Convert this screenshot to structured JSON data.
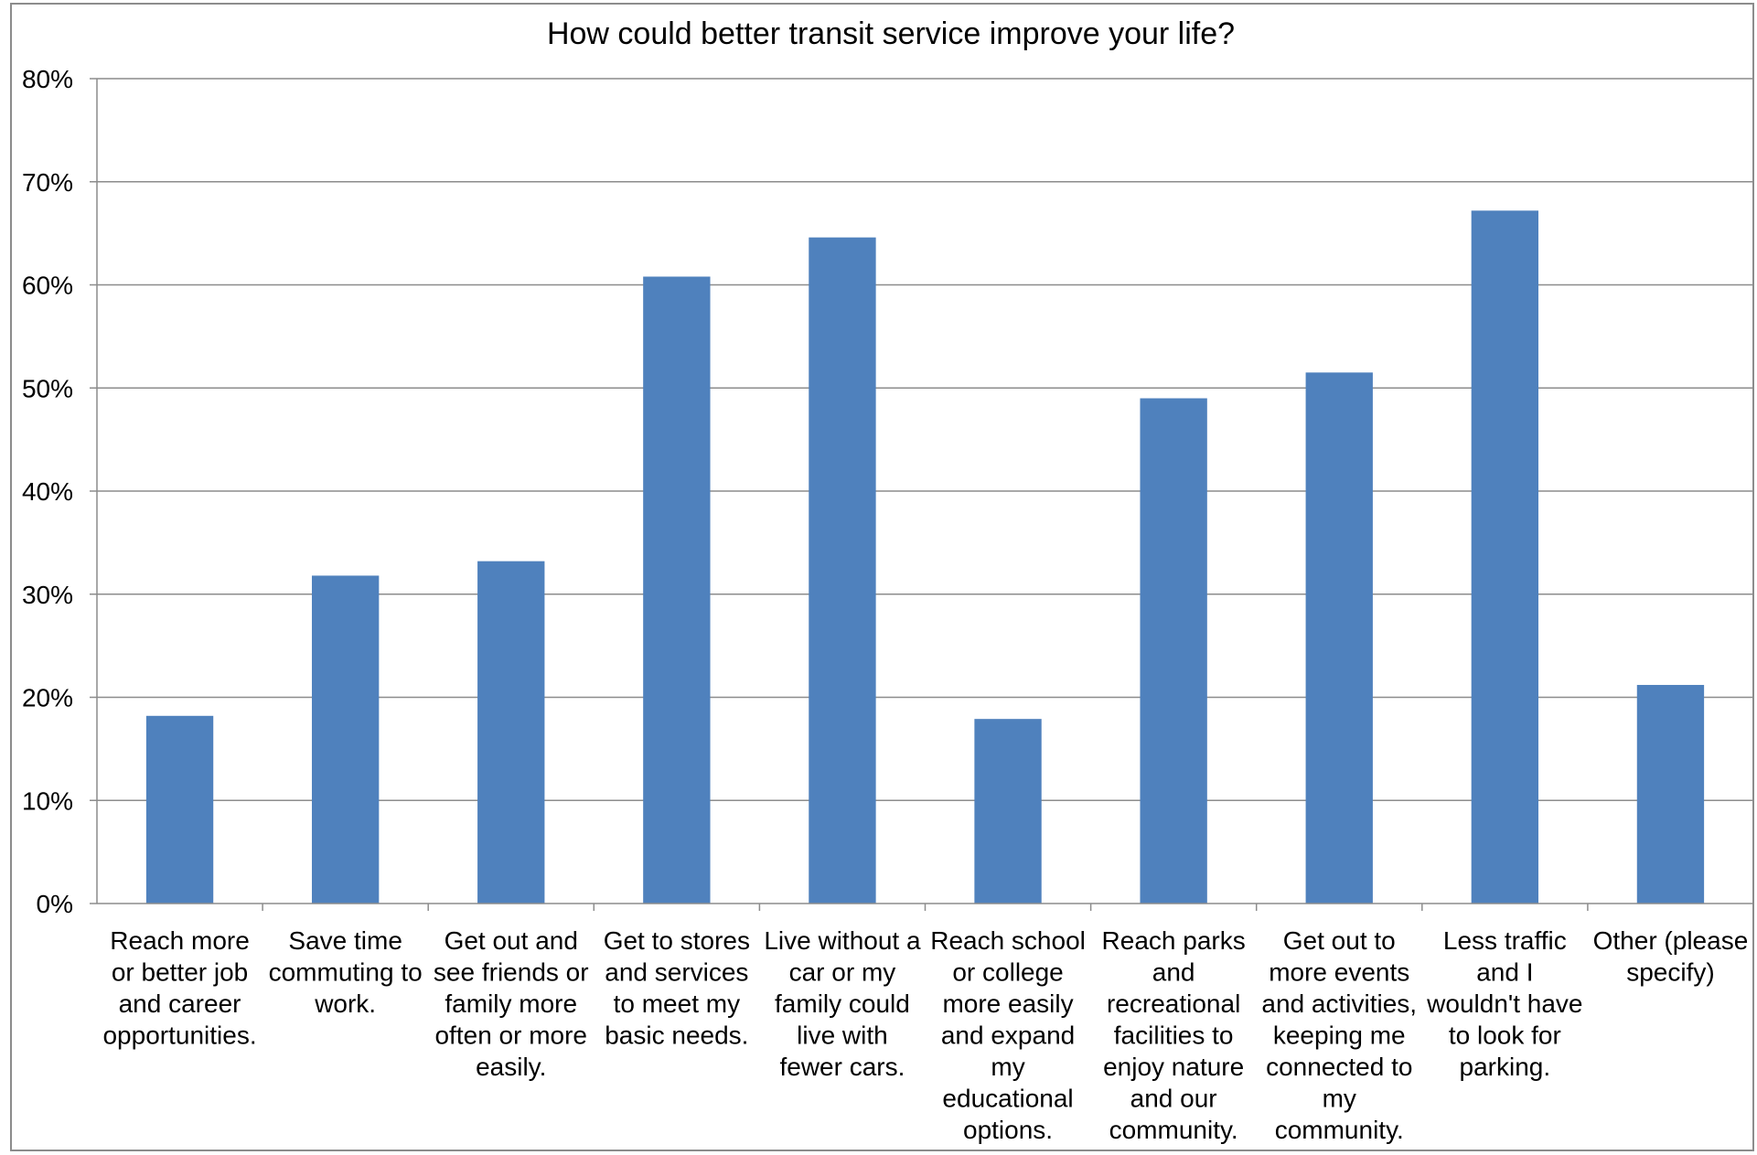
{
  "chart_data": {
    "type": "bar",
    "title": "How could better transit service improve your life?",
    "xlabel": "",
    "ylabel": "",
    "ylim": [
      0,
      0.8
    ],
    "yticks": [
      "0%",
      "10%",
      "20%",
      "30%",
      "40%",
      "50%",
      "60%",
      "70%",
      "80%"
    ],
    "grid": true,
    "legend": "none",
    "bar_color": "#4f81bd",
    "categories": [
      "Reach more or better job and career opportunities.",
      "Save time commuting to work.",
      "Get out and see friends or family more often or more easily.",
      "Get to stores and services to meet my basic needs.",
      "Live without a car or my family could live with fewer cars.",
      "Reach school or college more easily and expand my educational options.",
      "Reach parks and recreational facilities to enjoy nature and our community.",
      "Get out to more events and activities, keeping me connected to my community.",
      "Less traffic and I wouldn't have to look for parking.",
      "Other (please specify)"
    ],
    "category_label_lines": [
      [
        "Reach more",
        "or better job",
        "and career",
        "opportunities."
      ],
      [
        "Save time",
        "commuting to",
        "work."
      ],
      [
        "Get out and",
        "see friends or",
        "family more",
        "often or more",
        "easily."
      ],
      [
        "Get to stores",
        "and services",
        "to meet my",
        "basic needs."
      ],
      [
        "Live without a",
        "car or my",
        "family could",
        "live with",
        "fewer cars."
      ],
      [
        "Reach school",
        "or college",
        "more easily",
        "and expand",
        "my",
        "educational",
        "options."
      ],
      [
        "Reach parks",
        "and",
        "recreational",
        "facilities to",
        "enjoy nature",
        "and our",
        "community."
      ],
      [
        "Get out to",
        "more events",
        "and activities,",
        "keeping me",
        "connected to",
        "my",
        "community."
      ],
      [
        "Less traffic",
        "and I",
        "wouldn't have",
        "to look for",
        "parking."
      ],
      [
        "Other (please",
        "specify)"
      ]
    ],
    "values": [
      0.182,
      0.318,
      0.332,
      0.608,
      0.646,
      0.179,
      0.49,
      0.515,
      0.672,
      0.212
    ]
  }
}
